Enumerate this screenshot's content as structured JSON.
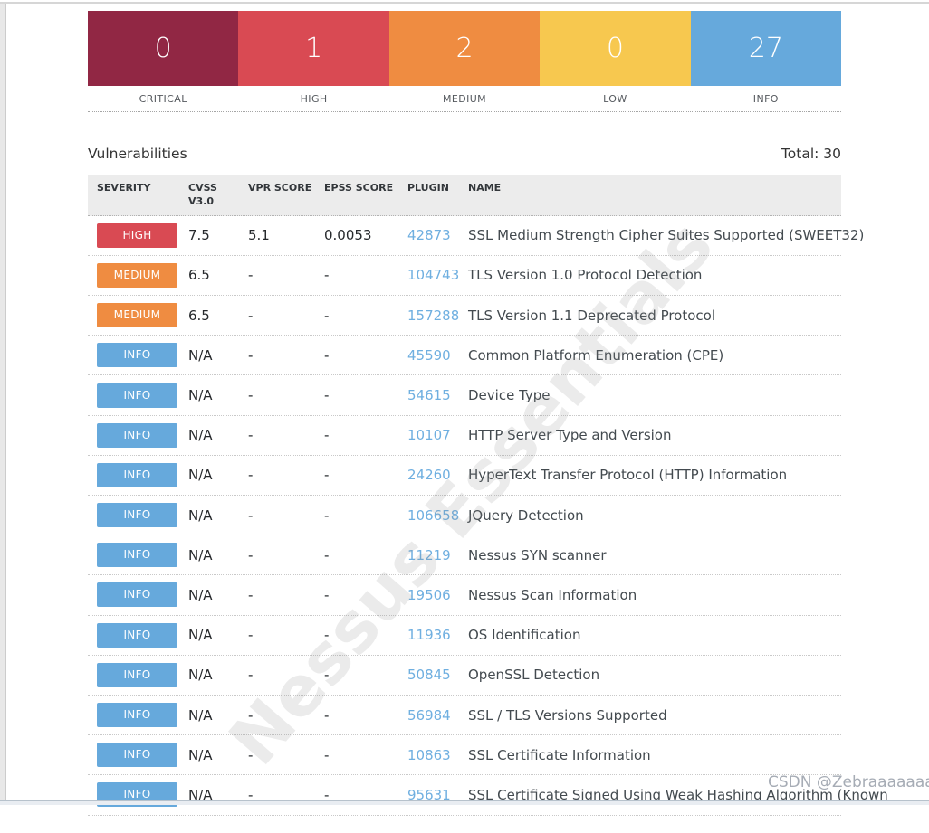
{
  "summary": {
    "blocks": [
      {
        "label": "CRITICAL",
        "count": "0",
        "severity": "critical"
      },
      {
        "label": "HIGH",
        "count": "1",
        "severity": "high"
      },
      {
        "label": "MEDIUM",
        "count": "2",
        "severity": "medium"
      },
      {
        "label": "LOW",
        "count": "0",
        "severity": "low"
      },
      {
        "label": "INFO",
        "count": "27",
        "severity": "info"
      }
    ]
  },
  "section": {
    "title": "Vulnerabilities",
    "total_label": "Total: 30"
  },
  "table": {
    "columns": [
      "SEVERITY",
      "CVSS V3.0",
      "VPR SCORE",
      "EPSS SCORE",
      "PLUGIN",
      "NAME"
    ],
    "rows": [
      {
        "severity": "HIGH",
        "cvss": "7.5",
        "vpr": "5.1",
        "epss": "0.0053",
        "plugin": "42873",
        "name": "SSL Medium Strength Cipher Suites Supported (SWEET32)"
      },
      {
        "severity": "MEDIUM",
        "cvss": "6.5",
        "vpr": "-",
        "epss": "-",
        "plugin": "104743",
        "name": "TLS Version 1.0 Protocol Detection"
      },
      {
        "severity": "MEDIUM",
        "cvss": "6.5",
        "vpr": "-",
        "epss": "-",
        "plugin": "157288",
        "name": "TLS Version 1.1 Deprecated Protocol"
      },
      {
        "severity": "INFO",
        "cvss": "N/A",
        "vpr": "-",
        "epss": "-",
        "plugin": "45590",
        "name": "Common Platform Enumeration (CPE)"
      },
      {
        "severity": "INFO",
        "cvss": "N/A",
        "vpr": "-",
        "epss": "-",
        "plugin": "54615",
        "name": "Device Type"
      },
      {
        "severity": "INFO",
        "cvss": "N/A",
        "vpr": "-",
        "epss": "-",
        "plugin": "10107",
        "name": "HTTP Server Type and Version"
      },
      {
        "severity": "INFO",
        "cvss": "N/A",
        "vpr": "-",
        "epss": "-",
        "plugin": "24260",
        "name": "HyperText Transfer Protocol (HTTP) Information"
      },
      {
        "severity": "INFO",
        "cvss": "N/A",
        "vpr": "-",
        "epss": "-",
        "plugin": "106658",
        "name": "JQuery Detection"
      },
      {
        "severity": "INFO",
        "cvss": "N/A",
        "vpr": "-",
        "epss": "-",
        "plugin": "11219",
        "name": "Nessus SYN scanner"
      },
      {
        "severity": "INFO",
        "cvss": "N/A",
        "vpr": "-",
        "epss": "-",
        "plugin": "19506",
        "name": "Nessus Scan Information"
      },
      {
        "severity": "INFO",
        "cvss": "N/A",
        "vpr": "-",
        "epss": "-",
        "plugin": "11936",
        "name": "OS Identification"
      },
      {
        "severity": "INFO",
        "cvss": "N/A",
        "vpr": "-",
        "epss": "-",
        "plugin": "50845",
        "name": "OpenSSL Detection"
      },
      {
        "severity": "INFO",
        "cvss": "N/A",
        "vpr": "-",
        "epss": "-",
        "plugin": "56984",
        "name": "SSL / TLS Versions Supported"
      },
      {
        "severity": "INFO",
        "cvss": "N/A",
        "vpr": "-",
        "epss": "-",
        "plugin": "10863",
        "name": "SSL Certificate Information"
      },
      {
        "severity": "INFO",
        "cvss": "N/A",
        "vpr": "-",
        "epss": "-",
        "plugin": "95631",
        "name": "SSL Certificate Signed Using Weak Hashing Algorithm (Known"
      }
    ]
  },
  "watermarks": {
    "diagonal": "Nessus Essentials",
    "csdn": "CSDN @Zebraaaaaaa"
  },
  "colors": {
    "critical": "#912744",
    "high": "#D94A53",
    "medium": "#EF8C41",
    "low": "#F7C84F",
    "info": "#66A9DC",
    "plugin_link": "#6FAFE0"
  }
}
